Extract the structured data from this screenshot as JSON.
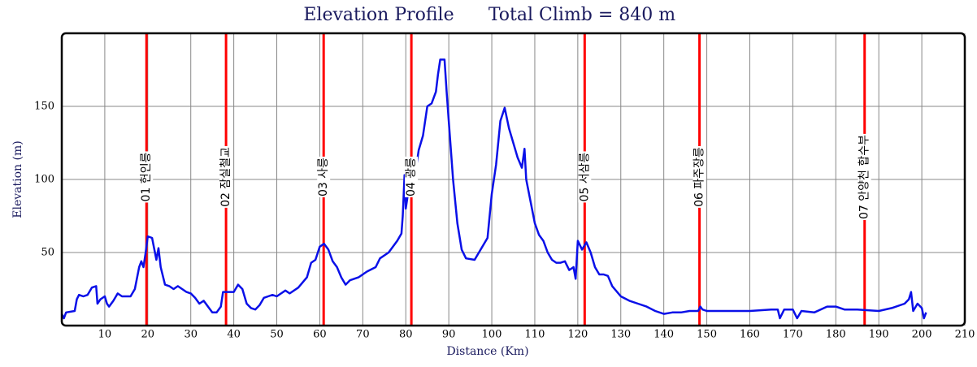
{
  "chart_data": {
    "type": "line",
    "title": "Elevation Profile",
    "subtitle": "Total Climb = 840 m",
    "x_label": "Distance (Km)",
    "y_label": "Elevation (m)",
    "xlim": [
      0,
      210
    ],
    "ylim": [
      0,
      200
    ],
    "xticks": [
      10,
      20,
      30,
      40,
      50,
      60,
      70,
      80,
      90,
      100,
      110,
      120,
      130,
      140,
      150,
      160,
      170,
      180,
      190,
      200,
      210
    ],
    "yticks": [
      50,
      100,
      150
    ],
    "grid": true,
    "series": [
      {
        "name": "Elevation",
        "color": "#0a10e8",
        "x": [
          0,
          0.5,
          1,
          3,
          3.5,
          4,
          5,
          6,
          7,
          8,
          8.3,
          9,
          10,
          10.5,
          11,
          12,
          13,
          14,
          16,
          17,
          18,
          18.5,
          19,
          19.5,
          20,
          21,
          22,
          22.5,
          23,
          24,
          25,
          26,
          27,
          29,
          30,
          31,
          32,
          33,
          34,
          35,
          36,
          37,
          37.5,
          39,
          40,
          41,
          42,
          43,
          44,
          45,
          46,
          47,
          48,
          49,
          50,
          51,
          52,
          53,
          55,
          57,
          58,
          59,
          60,
          61,
          62,
          63,
          64,
          65,
          66,
          67,
          69,
          71,
          73,
          74,
          76,
          78,
          79,
          79.3,
          79.7,
          80,
          80.5,
          81,
          82,
          83,
          84,
          85,
          86,
          87,
          87.5,
          88,
          89,
          89.5,
          90,
          91,
          92,
          93,
          94,
          96,
          97,
          98,
          99,
          100,
          101,
          102,
          103,
          104,
          105,
          106,
          107,
          107.6,
          108,
          109,
          110,
          111,
          112,
          113,
          114,
          115,
          116,
          117,
          118,
          119,
          119.5,
          120,
          121,
          122,
          123,
          124,
          125,
          126,
          127,
          128,
          130,
          132,
          134,
          136,
          138,
          140,
          142,
          144,
          146,
          148,
          148.5,
          149,
          150,
          155,
          160,
          165,
          166.5,
          167,
          168,
          170,
          171,
          172,
          175,
          178,
          180,
          182,
          185,
          190,
          193,
          196,
          197,
          197.5,
          198,
          199,
          200,
          200.5,
          201
        ],
        "values": [
          8,
          5,
          9,
          10,
          18,
          21,
          20,
          21,
          26,
          27,
          15,
          18,
          20,
          15,
          13,
          17,
          22,
          20,
          20,
          25,
          40,
          44,
          40,
          50,
          61,
          60,
          45,
          53,
          40,
          28,
          27,
          25,
          27,
          23,
          22,
          19,
          15,
          17,
          13,
          9,
          9,
          13,
          23,
          23,
          23,
          28,
          25,
          15,
          12,
          11,
          14,
          19,
          20,
          21,
          20,
          22,
          24,
          22,
          26,
          33,
          43,
          45,
          54,
          56,
          52,
          44,
          40,
          33,
          28,
          31,
          33,
          37,
          40,
          46,
          50,
          58,
          63,
          75,
          103,
          80,
          90,
          92,
          100,
          120,
          130,
          150,
          152,
          160,
          172,
          182,
          182,
          160,
          140,
          100,
          70,
          52,
          46,
          45,
          50,
          55,
          60,
          90,
          110,
          140,
          149,
          135,
          125,
          115,
          108,
          121,
          100,
          85,
          70,
          62,
          58,
          50,
          45,
          43,
          43,
          44,
          38,
          40,
          32,
          58,
          52,
          57,
          50,
          40,
          35,
          35,
          34,
          27,
          20,
          17,
          15,
          13,
          10,
          8,
          9,
          9,
          10,
          10,
          13,
          11,
          10,
          10,
          10,
          11,
          11,
          5,
          11,
          11,
          5,
          10,
          9,
          13,
          13,
          11,
          11,
          10,
          12,
          15,
          18,
          23,
          10,
          15,
          12,
          5,
          9
        ]
      }
    ],
    "markers": [
      {
        "label": "01 헌인릉",
        "x": 19.7
      },
      {
        "label": "02 잠실철교",
        "x": 38.2
      },
      {
        "label": "03 사릉",
        "x": 60.9
      },
      {
        "label": "04 광릉",
        "x": 81.3
      },
      {
        "label": "05 서삼릉",
        "x": 121.6
      },
      {
        "label": "06 파주장릉",
        "x": 148.3
      },
      {
        "label": "07 안양천 합수부",
        "x": 186.7
      }
    ],
    "marker_color": "#ff0000"
  }
}
